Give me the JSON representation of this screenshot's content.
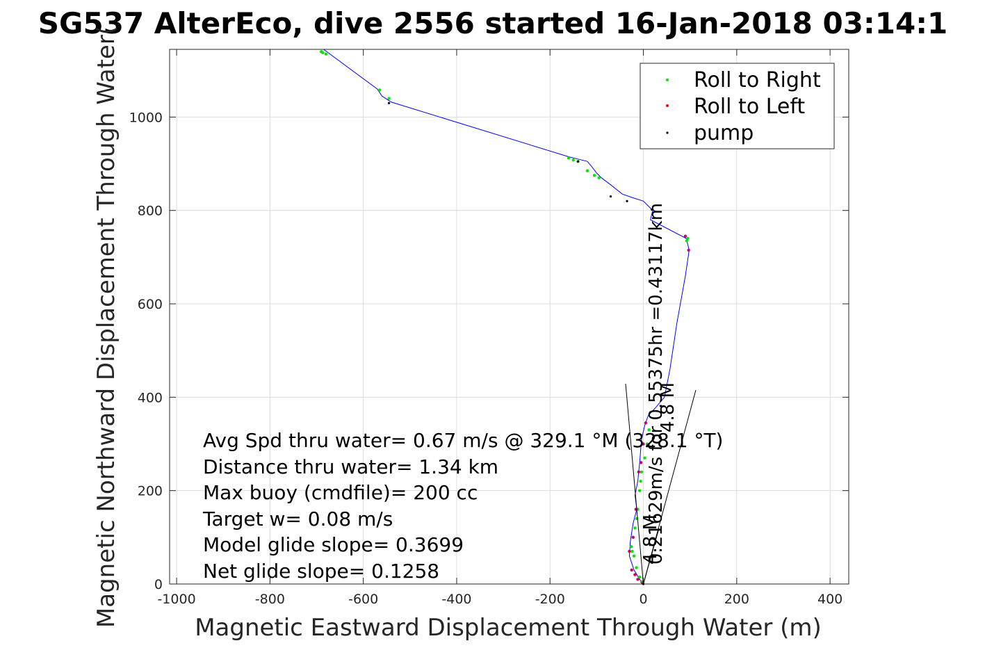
{
  "chart_data": {
    "type": "line",
    "title": "SG537 AlterEco, dive 2556 started 16-Jan-2018 03:14:1",
    "xlabel": "Magnetic Eastward Displacement Through Water (m)",
    "ylabel": "Magnetic Northward Displacement Through Water(",
    "xlim": [
      -1015,
      440
    ],
    "ylim": [
      0,
      1145
    ],
    "xticks": [
      -1000,
      -800,
      -600,
      -400,
      -200,
      0,
      200,
      400
    ],
    "yticks": [
      0,
      200,
      400,
      600,
      800,
      1000
    ],
    "xtick_labels": [
      "-1000",
      "-800",
      "-600",
      "-400",
      "-200",
      "0",
      "200",
      "400"
    ],
    "ytick_labels": [
      "0",
      "200",
      "400",
      "600",
      "800",
      "1000"
    ],
    "grid": true,
    "legend_position": "top-right",
    "legend": [
      {
        "label": "Roll to Right",
        "color": "#00e600"
      },
      {
        "label": "Roll to Left",
        "color": "#ff0000"
      },
      {
        "label": "pump",
        "color": "#000000"
      }
    ],
    "series": [
      {
        "type": "line",
        "color": "#0000ff",
        "x": [
          0,
          -8,
          -20,
          -30,
          -28,
          -22,
          -14,
          -18,
          -12,
          -8,
          -4,
          3,
          10,
          28,
          45,
          57,
          72,
          90,
          98,
          92,
          15,
          20,
          10,
          0,
          -25,
          -45,
          -70,
          -90,
          -100,
          -110,
          -120,
          -140,
          -160,
          -540,
          -560,
          -570,
          -685
        ],
        "y": [
          0,
          10,
          30,
          60,
          90,
          130,
          160,
          190,
          220,
          260,
          310,
          340,
          360,
          380,
          400,
          460,
          560,
          660,
          715,
          740,
          780,
          800,
          810,
          820,
          828,
          835,
          855,
          870,
          880,
          893,
          905,
          910,
          915,
          1032,
          1045,
          1060,
          1145
        ]
      }
    ],
    "roll_right_points": {
      "x": [
        -4,
        -8,
        -15,
        -20,
        -24,
        -26,
        -18,
        -14,
        -12,
        -8,
        -6,
        -4,
        3,
        8,
        12,
        93,
        95,
        -690,
        -687,
        -680,
        -565,
        -545,
        -160,
        -150,
        -140,
        -120,
        -105,
        -95
      ],
      "y": [
        5,
        15,
        35,
        60,
        70,
        80,
        120,
        140,
        160,
        200,
        220,
        240,
        270,
        300,
        330,
        735,
        740,
        1140,
        1138,
        1135,
        1058,
        1040,
        912,
        908,
        905,
        885,
        875,
        870
      ]
    },
    "roll_left_points": {
      "x": [
        -2,
        -12,
        -18,
        -25,
        -30,
        -22,
        -16,
        -10,
        -5,
        0,
        5,
        97,
        90
      ],
      "y": [
        2,
        10,
        20,
        30,
        70,
        100,
        160,
        240,
        260,
        300,
        345,
        715,
        745
      ],
      "color": "#cc0066"
    },
    "pump_points": {
      "x": [
        0,
        18,
        -70,
        -35,
        -545,
        -140
      ],
      "y": [
        0,
        802,
        830,
        820,
        1030,
        905
      ]
    },
    "stats": [
      "Avg Spd thru water=  0.67 m/s @ 329.1 °M (328.1 °T)",
      "Distance thru water=  1.34 km",
      "Max buoy (cmdfile)= 200 cc",
      "Target w= 0.08 m/s",
      "Model glide slope= 0.3699",
      "Net glide slope= 0.1258"
    ],
    "annotations": [
      "0.21629m/s for 0.55375hr =0.43117km",
      "4.8 M",
      "4.8 M"
    ]
  }
}
